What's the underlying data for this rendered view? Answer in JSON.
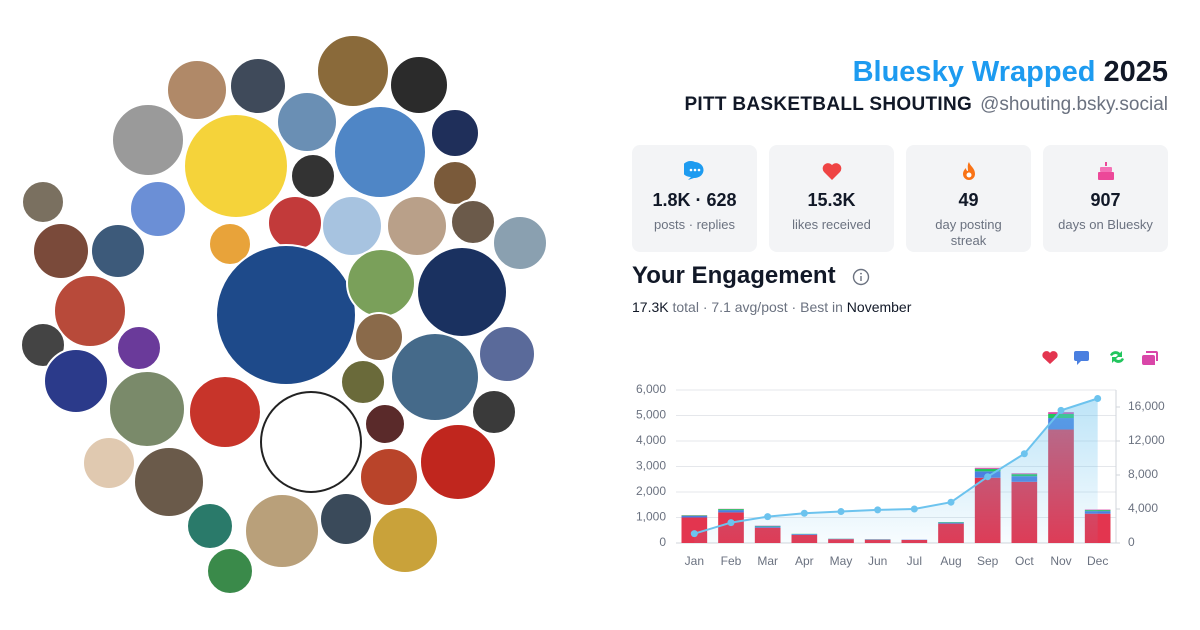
{
  "header": {
    "title": "Bluesky Wrapped",
    "year": "2025",
    "name": "PITT BASKETBALL SHOUTING",
    "handle": "@shouting.bsky.social"
  },
  "stats": [
    {
      "value": "1.8K · 628",
      "label": "posts · replies"
    },
    {
      "value": "15.3K",
      "label": "likes received"
    },
    {
      "value": "49",
      "label": "day posting streak"
    },
    {
      "value": "907",
      "label": "days on Bluesky"
    }
  ],
  "engagement": {
    "title": "Your Engagement",
    "total": "17.3K",
    "details": "total · 7.1 avg/post · Best in",
    "best": "November"
  },
  "chart_data": {
    "type": "bar",
    "stacked": true,
    "categories": [
      "Jan",
      "Feb",
      "Mar",
      "Apr",
      "May",
      "Jun",
      "Jul",
      "Aug",
      "Sep",
      "Oct",
      "Nov",
      "Dec"
    ],
    "series": [
      {
        "color": "#e3354f",
        "values": [
          1000,
          1200,
          600,
          320,
          150,
          130,
          120,
          760,
          2560,
          2400,
          4450,
          1150
        ]
      },
      {
        "color": "#4a7fe0",
        "values": [
          60,
          90,
          50,
          30,
          15,
          15,
          10,
          40,
          250,
          220,
          450,
          100
        ]
      },
      {
        "color": "#22c55e",
        "values": [
          20,
          40,
          20,
          10,
          5,
          5,
          0,
          20,
          100,
          80,
          160,
          40
        ]
      },
      {
        "color": "#d946a8",
        "values": [
          10,
          10,
          10,
          0,
          0,
          0,
          0,
          0,
          40,
          30,
          70,
          20
        ]
      },
      {
        "type": "line",
        "axis": "y2",
        "color": "#6cc3ee",
        "values": [
          1100,
          2400,
          3100,
          3500,
          3700,
          3900,
          4000,
          4800,
          7800,
          10500,
          15600,
          17000
        ]
      }
    ],
    "ylim": [
      0,
      6000
    ],
    "yticks": [
      0,
      {
        "value": 1000,
        "label": "1,000"
      },
      {
        "value": 2000,
        "label": "2,000"
      },
      {
        "value": 3000,
        "label": "3,000"
      },
      {
        "value": 4000,
        "label": "4,000"
      },
      {
        "value": 5000,
        "label": "5,000"
      },
      {
        "value": 6000,
        "label": "6,000"
      }
    ],
    "y2lim": [
      0,
      18000
    ],
    "y2ticks": [
      0,
      {
        "value": 4000,
        "label": "4,000"
      },
      {
        "value": 8000,
        "label": "8,000"
      },
      {
        "value": 12000,
        "label": "12,000"
      },
      {
        "value": 16000,
        "label": "16,000"
      }
    ],
    "grid": true
  }
}
